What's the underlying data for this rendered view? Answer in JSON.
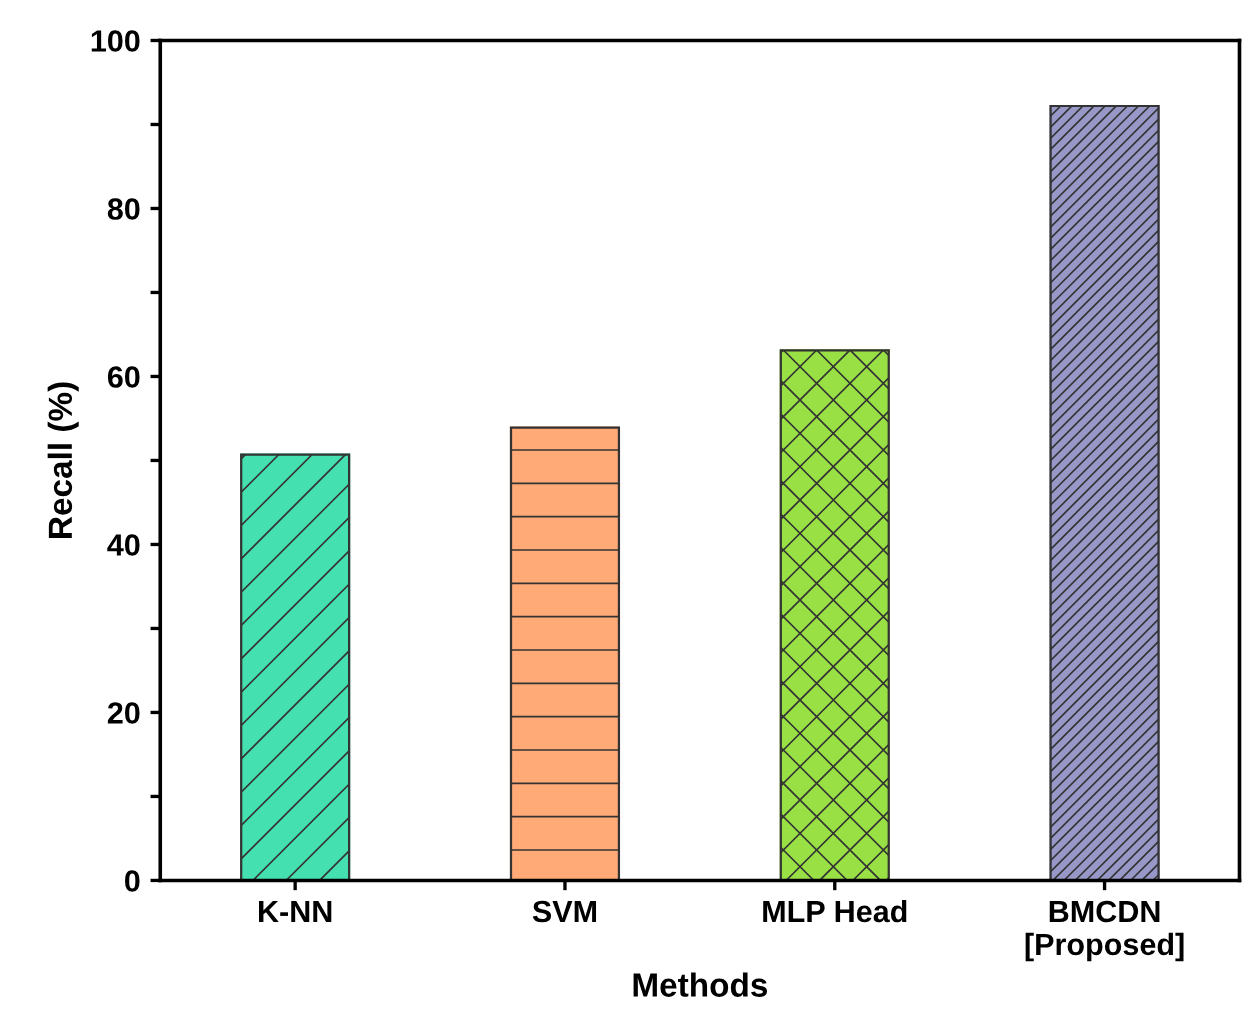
{
  "chart_data": {
    "type": "bar",
    "xlabel": "Methods",
    "ylabel": "Recall (%)",
    "categories": [
      "K-NN",
      "SVM",
      "MLP Head",
      "BMCDN\n[Proposed]"
    ],
    "values": [
      50.7,
      53.9,
      63.1,
      92.2
    ],
    "colors": [
      "#45e0b0",
      "#ffaa77",
      "#99e044",
      "#9898c8"
    ],
    "ylim": [
      0,
      100
    ],
    "yticks": [
      0,
      {
        "value": 10,
        "label": null
      },
      20,
      {
        "value": 30,
        "label": null
      },
      40,
      {
        "value": 50,
        "label": null
      },
      60,
      {
        "value": 70,
        "label": null
      },
      80,
      {
        "value": 90,
        "label": null
      },
      100
    ],
    "grid": false
  }
}
